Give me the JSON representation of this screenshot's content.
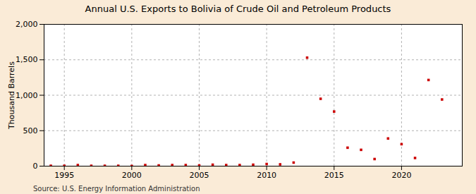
{
  "chart_data": {
    "type": "scatter",
    "title": "Annual U.S. Exports to Bolivia of Crude Oil and Petroleum Products",
    "ylabel": "Thousand Barrels",
    "source": "Source: U.S. Energy Information Administration",
    "x": [
      1994,
      1995,
      1996,
      1997,
      1998,
      1999,
      2000,
      2001,
      2002,
      2003,
      2004,
      2005,
      2006,
      2007,
      2008,
      2009,
      2010,
      2011,
      2012,
      2013,
      2014,
      2015,
      2016,
      2017,
      2018,
      2019,
      2020,
      2021,
      2022,
      2023
    ],
    "values": [
      5,
      5,
      15,
      5,
      5,
      5,
      2,
      15,
      10,
      15,
      15,
      10,
      20,
      15,
      15,
      20,
      30,
      25,
      50,
      1530,
      950,
      770,
      260,
      230,
      100,
      390,
      310,
      115,
      1215,
      940
    ],
    "color": "#cc0000",
    "marker": "square",
    "xlim": [
      1993.5,
      2024.5
    ],
    "ylim": [
      0,
      2000
    ],
    "xticks": [
      1995,
      2000,
      2005,
      2010,
      2015,
      2020
    ],
    "yticks": [
      0,
      500,
      {
        "value": 1000,
        "label": "1,000"
      },
      {
        "value": 1500,
        "label": "1,500"
      },
      {
        "value": 2000,
        "label": "2,000"
      }
    ],
    "grid": true
  }
}
